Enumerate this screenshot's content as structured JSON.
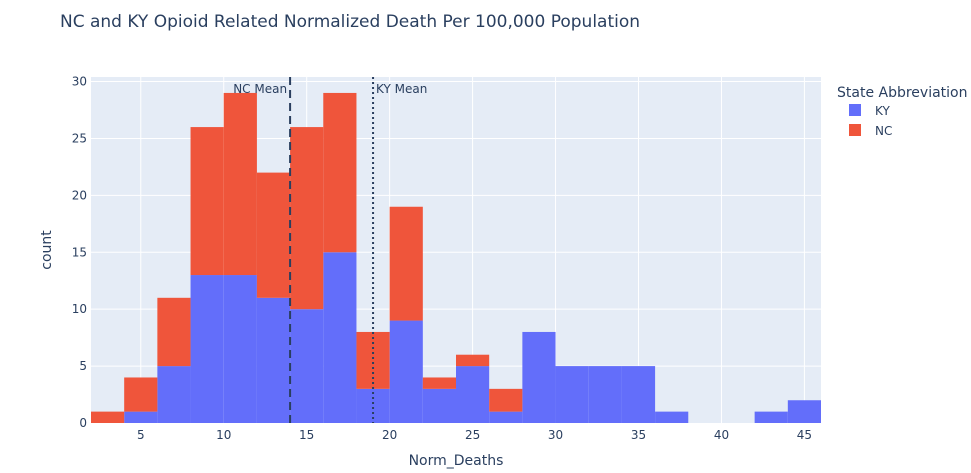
{
  "chart_data": {
    "type": "bar",
    "barmode": "stack",
    "title": "NC and KY Opioid Related Normalized Death Per 100,000 Population",
    "xlabel": "Norm_Deaths",
    "ylabel": "count",
    "xlim": [
      2,
      46
    ],
    "ylim": [
      0,
      30.4
    ],
    "bin_width": 2,
    "x_ticks": [
      5,
      10,
      15,
      20,
      25,
      30,
      35,
      40,
      45
    ],
    "y_ticks": [
      0,
      5,
      10,
      15,
      20,
      25,
      30
    ],
    "grid": true,
    "legend": {
      "title": "State Abbreviation",
      "position": "top-right"
    },
    "series": [
      {
        "name": "KY",
        "color": "#636efa",
        "bins": [
          {
            "start": 2,
            "value": 0
          },
          {
            "start": 4,
            "value": 1
          },
          {
            "start": 6,
            "value": 5
          },
          {
            "start": 8,
            "value": 13
          },
          {
            "start": 10,
            "value": 13
          },
          {
            "start": 12,
            "value": 11
          },
          {
            "start": 14,
            "value": 10
          },
          {
            "start": 16,
            "value": 15
          },
          {
            "start": 18,
            "value": 3
          },
          {
            "start": 20,
            "value": 9
          },
          {
            "start": 22,
            "value": 3
          },
          {
            "start": 24,
            "value": 5
          },
          {
            "start": 26,
            "value": 1
          },
          {
            "start": 28,
            "value": 8
          },
          {
            "start": 30,
            "value": 5
          },
          {
            "start": 32,
            "value": 5
          },
          {
            "start": 34,
            "value": 5
          },
          {
            "start": 36,
            "value": 1
          },
          {
            "start": 38,
            "value": 0
          },
          {
            "start": 40,
            "value": 0
          },
          {
            "start": 42,
            "value": 1
          },
          {
            "start": 44,
            "value": 2
          }
        ]
      },
      {
        "name": "NC",
        "color": "#ef553b",
        "bins": [
          {
            "start": 2,
            "value": 1
          },
          {
            "start": 4,
            "value": 3
          },
          {
            "start": 6,
            "value": 6
          },
          {
            "start": 8,
            "value": 13
          },
          {
            "start": 10,
            "value": 16
          },
          {
            "start": 12,
            "value": 11
          },
          {
            "start": 14,
            "value": 16
          },
          {
            "start": 16,
            "value": 14
          },
          {
            "start": 18,
            "value": 5
          },
          {
            "start": 20,
            "value": 10
          },
          {
            "start": 22,
            "value": 1
          },
          {
            "start": 24,
            "value": 1
          },
          {
            "start": 26,
            "value": 2
          }
        ]
      }
    ],
    "annotations": [
      {
        "label": "NC Mean",
        "x": 14.0,
        "style": "dash",
        "text_side": "left"
      },
      {
        "label": "KY Mean",
        "x": 19.0,
        "style": "dot",
        "text_side": "right"
      }
    ]
  }
}
